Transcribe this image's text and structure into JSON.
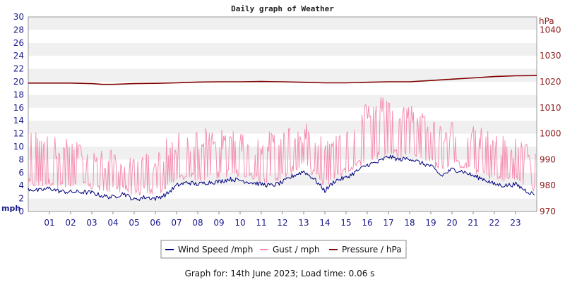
{
  "chart_data": {
    "type": "line",
    "title": "Daily graph of Weather",
    "x_tick_labels": [
      "01",
      "02",
      "03",
      "04",
      "05",
      "06",
      "07",
      "08",
      "09",
      "10",
      "11",
      "12",
      "13",
      "14",
      "15",
      "16",
      "17",
      "18",
      "19",
      "20",
      "21",
      "22",
      "23"
    ],
    "x_range_hours": [
      0,
      24
    ],
    "left_axis": {
      "unit": "mph",
      "range": [
        0,
        30
      ],
      "ticks": [
        0,
        2,
        4,
        6,
        8,
        10,
        12,
        14,
        16,
        18,
        20,
        22,
        24,
        26,
        28,
        30
      ]
    },
    "right_axis": {
      "unit": "hPa",
      "range": [
        970,
        1045
      ],
      "ticks": [
        970,
        980,
        990,
        1000,
        1010,
        1020,
        1030,
        1040
      ]
    },
    "grid": "horizontal bands",
    "legend_position": "bottom",
    "series": [
      {
        "name": "Wind Speed /mph",
        "axis": "left",
        "color": "#000080",
        "points": [
          [
            0,
            3.5
          ],
          [
            0.5,
            3.2
          ],
          [
            1,
            3.6
          ],
          [
            1.5,
            3.1
          ],
          [
            2,
            3.0
          ],
          [
            2.5,
            3.0
          ],
          [
            3,
            2.9
          ],
          [
            3.5,
            2.4
          ],
          [
            4,
            2.2
          ],
          [
            4.5,
            2.8
          ],
          [
            5,
            1.8
          ],
          [
            5.5,
            2.2
          ],
          [
            6,
            2.0
          ],
          [
            6.5,
            2.6
          ],
          [
            7,
            4.0
          ],
          [
            7.5,
            4.5
          ],
          [
            8,
            4.2
          ],
          [
            8.5,
            4.5
          ],
          [
            9,
            4.6
          ],
          [
            9.5,
            5.0
          ],
          [
            10,
            4.8
          ],
          [
            10.5,
            4.5
          ],
          [
            11,
            4.2
          ],
          [
            11.5,
            4.0
          ],
          [
            12,
            4.5
          ],
          [
            12.5,
            5.5
          ],
          [
            13,
            6.2
          ],
          [
            13.5,
            5.0
          ],
          [
            14,
            3.2
          ],
          [
            14.5,
            4.8
          ],
          [
            15,
            5.2
          ],
          [
            15.5,
            6.2
          ],
          [
            16,
            7.2
          ],
          [
            16.5,
            7.6
          ],
          [
            17,
            8.5
          ],
          [
            17.5,
            8.0
          ],
          [
            18,
            8.2
          ],
          [
            18.5,
            7.5
          ],
          [
            19,
            7.0
          ],
          [
            19.5,
            5.5
          ],
          [
            20,
            6.5
          ],
          [
            20.5,
            6.2
          ],
          [
            21,
            5.5
          ],
          [
            21.5,
            5.0
          ],
          [
            22,
            4.2
          ],
          [
            22.5,
            4.0
          ],
          [
            23,
            4.2
          ],
          [
            23.5,
            3.2
          ],
          [
            23.9,
            2.6
          ]
        ]
      },
      {
        "name": "Gust / mph",
        "axis": "left",
        "color": "#f48fb1",
        "points": [
          [
            0,
            9.5
          ],
          [
            0.5,
            10.5
          ],
          [
            1,
            9.0
          ],
          [
            1.5,
            8.8
          ],
          [
            2,
            8.5
          ],
          [
            2.5,
            8.0
          ],
          [
            3,
            7.5
          ],
          [
            3.5,
            7.0
          ],
          [
            4,
            6.8
          ],
          [
            4.5,
            6.2
          ],
          [
            5,
            5.5
          ],
          [
            5.5,
            6.5
          ],
          [
            6,
            6.5
          ],
          [
            6.5,
            8.5
          ],
          [
            7,
            9.5
          ],
          [
            7.5,
            9.8
          ],
          [
            8,
            10.0
          ],
          [
            8.5,
            10.5
          ],
          [
            9,
            9.8
          ],
          [
            9.5,
            10.5
          ],
          [
            10,
            9.8
          ],
          [
            10.5,
            9.5
          ],
          [
            11,
            9.2
          ],
          [
            11.5,
            9.8
          ],
          [
            12,
            10.0
          ],
          [
            12.5,
            10.8
          ],
          [
            13,
            11.0
          ],
          [
            13.5,
            10.5
          ],
          [
            14,
            8.5
          ],
          [
            14.5,
            10.0
          ],
          [
            15,
            12.5
          ],
          [
            15.5,
            13.5
          ],
          [
            16,
            14.5
          ],
          [
            16.5,
            15.0
          ],
          [
            17,
            15.5
          ],
          [
            17.5,
            14.5
          ],
          [
            18,
            14.0
          ],
          [
            18.5,
            13.5
          ],
          [
            19,
            12.5
          ],
          [
            19.5,
            11.0
          ],
          [
            20,
            11.5
          ],
          [
            20.5,
            11.0
          ],
          [
            21,
            10.5
          ],
          [
            21.5,
            10.2
          ],
          [
            22,
            9.5
          ],
          [
            22.5,
            9.0
          ],
          [
            23,
            9.0
          ],
          [
            23.5,
            8.0
          ],
          [
            23.9,
            7.0
          ]
        ]
      },
      {
        "name": "Pressure / hPa",
        "axis": "right",
        "color": "#800000",
        "points": [
          [
            0,
            1019.5
          ],
          [
            2,
            1019.5
          ],
          [
            3,
            1019.3
          ],
          [
            3.5,
            1019.0
          ],
          [
            4,
            1019.0
          ],
          [
            5,
            1019.3
          ],
          [
            6,
            1019.4
          ],
          [
            7,
            1019.6
          ],
          [
            8,
            1019.9
          ],
          [
            9,
            1020.0
          ],
          [
            10,
            1020.0
          ],
          [
            11,
            1020.1
          ],
          [
            12,
            1020.0
          ],
          [
            13,
            1019.8
          ],
          [
            14,
            1019.6
          ],
          [
            15,
            1019.6
          ],
          [
            16,
            1019.8
          ],
          [
            17,
            1020.0
          ],
          [
            18,
            1020.0
          ],
          [
            19,
            1020.5
          ],
          [
            20,
            1021.0
          ],
          [
            21,
            1021.5
          ],
          [
            22,
            1022.0
          ],
          [
            23,
            1022.3
          ],
          [
            24,
            1022.4
          ]
        ]
      }
    ]
  },
  "footer": {
    "text": "Graph for: 14th June 2023; Load time: 0.06 s"
  }
}
